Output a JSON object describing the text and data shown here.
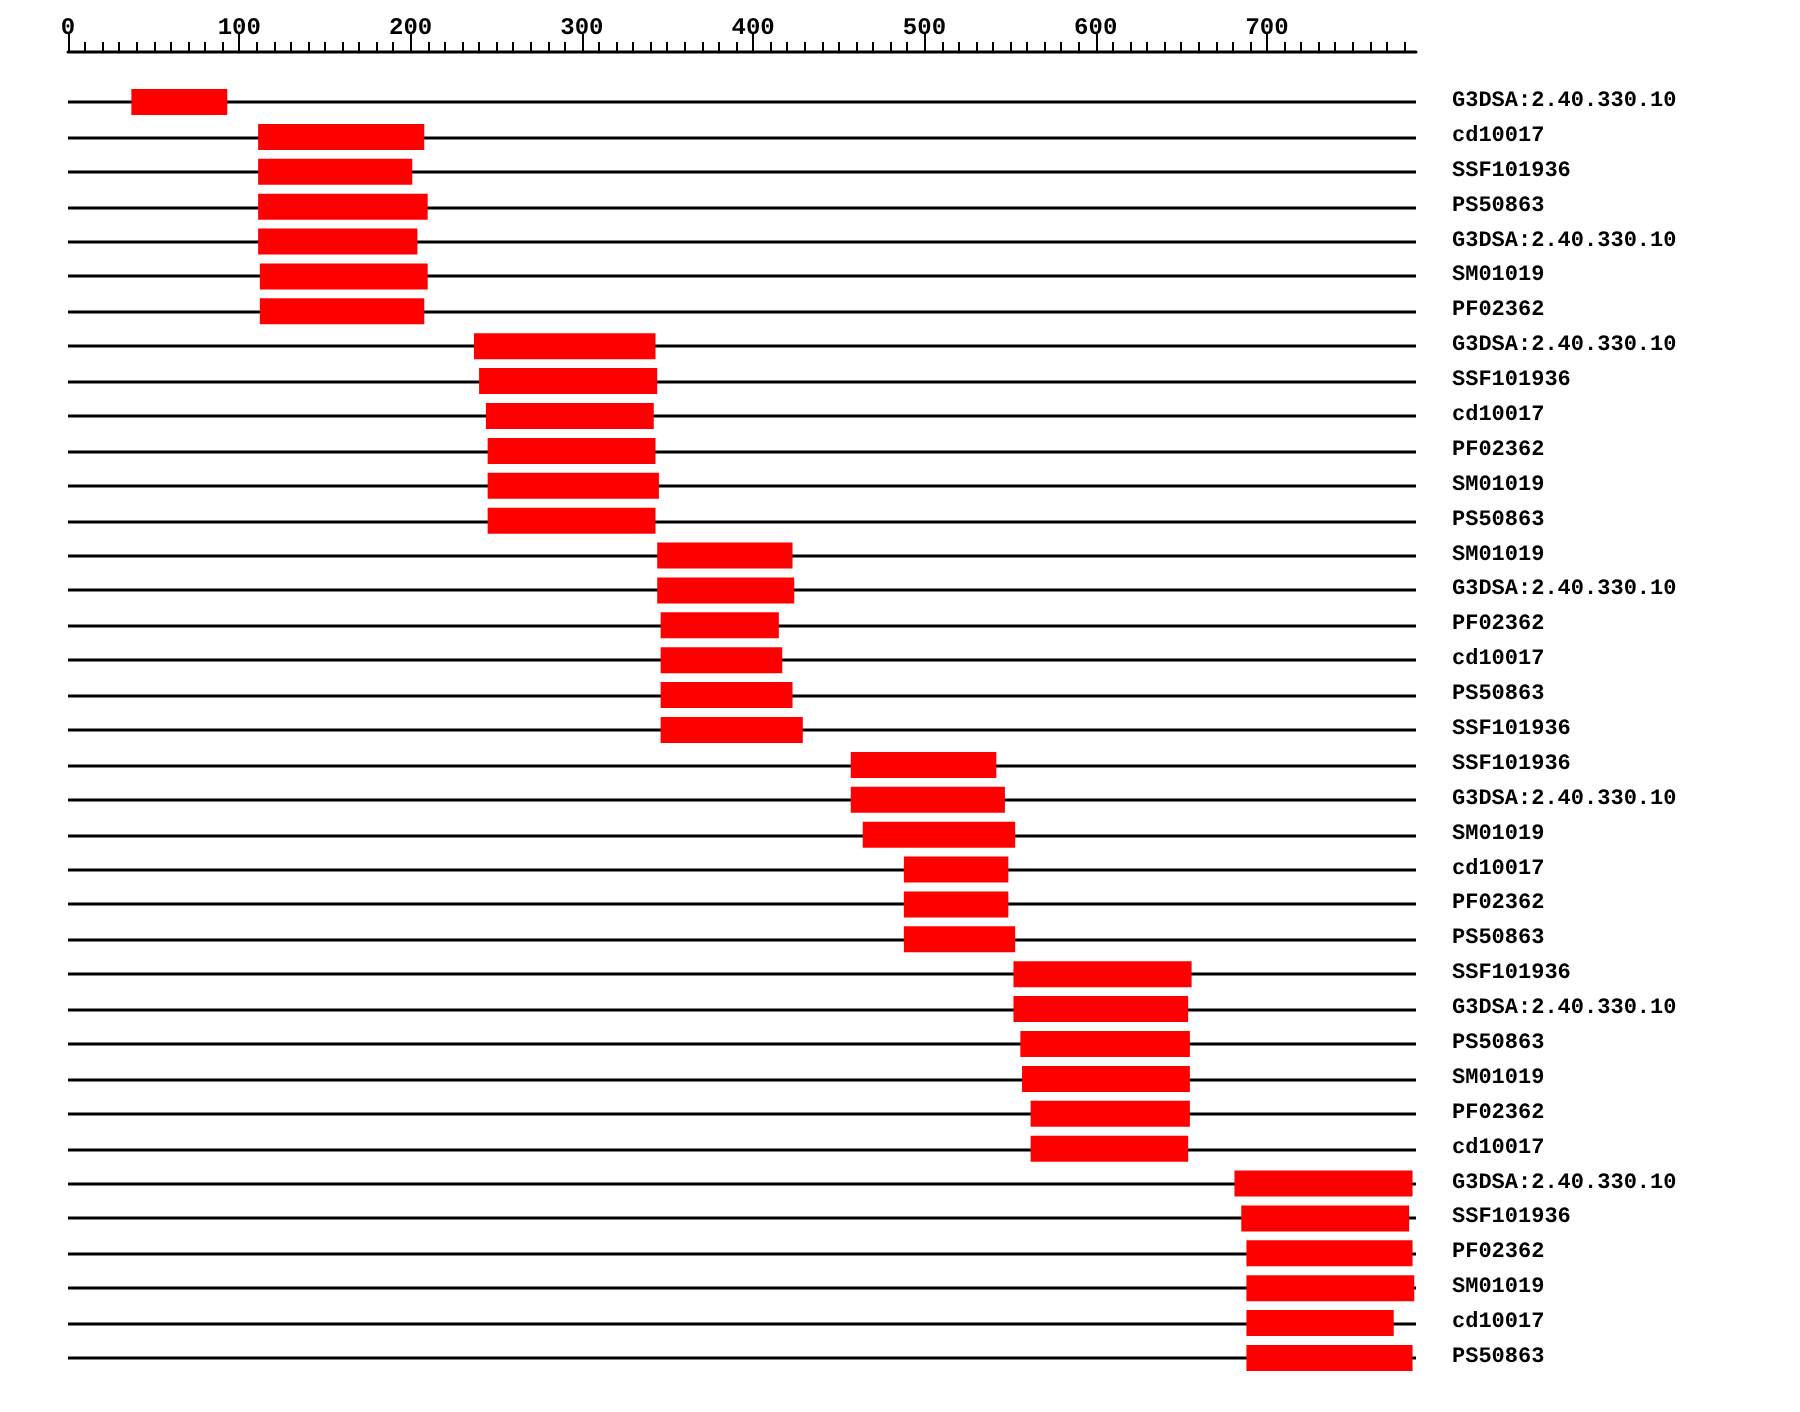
{
  "chart_data": {
    "type": "bar",
    "orientation": "horizontal",
    "color": "#ff0000",
    "grid": "y",
    "xlim": [
      0,
      787
    ],
    "xticks": [
      0,
      100,
      200,
      300,
      400,
      500,
      600,
      700
    ],
    "categories": [
      "G3DSA:2.40.330.10",
      "cd10017",
      "SSF101936",
      "PS50863",
      "G3DSA:2.40.330.10",
      "SM01019",
      "PF02362",
      "G3DSA:2.40.330.10",
      "SSF101936",
      "cd10017",
      "PF02362",
      "SM01019",
      "PS50863",
      "SM01019",
      "G3DSA:2.40.330.10",
      "PF02362",
      "cd10017",
      "PS50863",
      "SSF101936",
      "SSF101936",
      "G3DSA:2.40.330.10",
      "SM01019",
      "cd10017",
      "PF02362",
      "PS50863",
      "SSF101936",
      "G3DSA:2.40.330.10",
      "PS50863",
      "SM01019",
      "PF02362",
      "cd10017",
      "G3DSA:2.40.330.10",
      "SSF101936",
      "PF02362",
      "SM01019",
      "cd10017",
      "PS50863"
    ],
    "base": [
      37,
      111,
      111,
      111,
      111,
      112,
      112,
      237,
      240,
      244,
      245,
      245,
      245,
      344,
      344,
      346,
      346,
      346,
      346,
      457,
      457,
      464,
      488,
      488,
      488,
      552,
      552,
      556,
      557,
      562,
      562,
      681,
      685,
      688,
      688,
      688,
      688
    ],
    "values": [
      56,
      97,
      90,
      99,
      93,
      98,
      96,
      106,
      104,
      98,
      98,
      100,
      98,
      79,
      80,
      69,
      71,
      77,
      83,
      85,
      90,
      89,
      61,
      61,
      65,
      104,
      102,
      99,
      98,
      93,
      92,
      104,
      98,
      97,
      98,
      86,
      97
    ]
  }
}
